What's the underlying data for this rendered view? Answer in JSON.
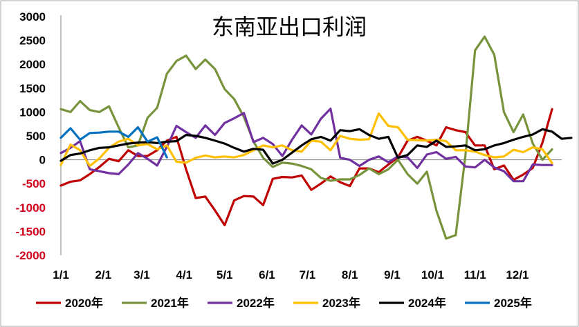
{
  "chart_data": {
    "type": "line",
    "title": "东南亚出口利润",
    "xlabel": "",
    "ylabel": "",
    "ylim": [
      -2000,
      3000
    ],
    "yticks": [
      -2000,
      -1500,
      -1000,
      -500,
      0,
      500,
      1000,
      1500,
      2000,
      2500,
      3000
    ],
    "ytick_labels": [
      "-2000",
      "-1500",
      "-1000",
      "-500",
      "0",
      "500",
      "1000",
      "1500",
      "2000",
      "2500",
      "3000"
    ],
    "xlim": [
      0,
      52
    ],
    "xticks": [
      0,
      4.4,
      8.4,
      12.8,
      17,
      21.4,
      25.6,
      30,
      34.4,
      38.6,
      43,
      47.4
    ],
    "xtick_labels": [
      "1/1",
      "2/1",
      "3/1",
      "4/1",
      "5/1",
      "6/1",
      "7/1",
      "8/1",
      "9/1",
      "10/1",
      "11/1",
      "12/1"
    ],
    "grid": false,
    "legend_position": "bottom",
    "series": [
      {
        "name": "2020年",
        "color": "#c00000",
        "values": [
          -540,
          -460,
          -430,
          -300,
          -150,
          20,
          -30,
          200,
          80,
          80,
          200,
          400,
          480,
          -200,
          -800,
          -770,
          -1060,
          -1370,
          -850,
          -760,
          -770,
          -950,
          -400,
          -360,
          -370,
          -330,
          -630,
          -500,
          -350,
          -470,
          -550,
          -180,
          -180,
          -260,
          -100,
          50,
          400,
          480,
          400,
          300,
          680,
          620,
          580,
          300,
          300,
          -200,
          -120,
          -420,
          -310,
          -170,
          360,
          1060
        ]
      },
      {
        "name": "2021年",
        "color": "#77933c",
        "values": [
          1060,
          1000,
          1230,
          1040,
          1000,
          1120,
          680,
          260,
          300,
          880,
          1090,
          1800,
          2070,
          2180,
          1900,
          2100,
          1900,
          1480,
          1270,
          900,
          380,
          40,
          -150,
          -60,
          -80,
          -130,
          -200,
          -380,
          -440,
          -410,
          -410,
          -320,
          -180,
          -300,
          -200,
          0,
          -300,
          -500,
          -250,
          -1070,
          -1650,
          -1580,
          90,
          2290,
          2580,
          2200,
          1000,
          580,
          950,
          340,
          0,
          220
        ]
      },
      {
        "name": "2022年",
        "color": "#7030a0",
        "values": [
          140,
          250,
          390,
          -200,
          -240,
          -280,
          -300,
          -100,
          140,
          20,
          -120,
          270,
          710,
          580,
          460,
          720,
          520,
          770,
          870,
          980,
          370,
          460,
          330,
          80,
          420,
          720,
          530,
          860,
          1070,
          40,
          0,
          -130,
          0,
          70,
          -50,
          70,
          50,
          -170,
          110,
          160,
          20,
          60,
          -140,
          -160,
          0,
          -160,
          -240,
          -450,
          -450,
          -100,
          -110,
          -110
        ]
      },
      {
        "name": "2023年",
        "color": "#ffc000",
        "values": [
          -110,
          320,
          200,
          -130,
          30,
          250,
          380,
          440,
          300,
          330,
          220,
          300,
          -40,
          -60,
          40,
          90,
          50,
          70,
          50,
          100,
          200,
          300,
          260,
          300,
          200,
          170,
          400,
          380,
          200,
          500,
          440,
          420,
          430,
          970,
          710,
          680,
          420,
          410,
          400,
          420,
          390,
          200,
          200,
          170,
          100,
          50,
          70,
          210,
          160,
          260,
          220,
          -70
        ]
      },
      {
        "name": "2024年",
        "color": "#000000",
        "values": [
          -20,
          100,
          130,
          200,
          250,
          260,
          300,
          340,
          360,
          370,
          350,
          380,
          390,
          520,
          500,
          460,
          400,
          340,
          250,
          170,
          230,
          210,
          -80,
          0,
          150,
          300,
          430,
          480,
          400,
          620,
          600,
          640,
          520,
          440,
          480,
          40,
          100,
          300,
          270,
          400,
          270,
          280,
          300,
          200,
          220,
          300,
          350,
          420,
          480,
          530,
          640,
          590,
          440,
          460
        ]
      },
      {
        "name": "2025年",
        "color": "#0070c0",
        "values": [
          460,
          660,
          420,
          560,
          570,
          590,
          590,
          480,
          680,
          380,
          470,
          50
        ]
      }
    ]
  }
}
